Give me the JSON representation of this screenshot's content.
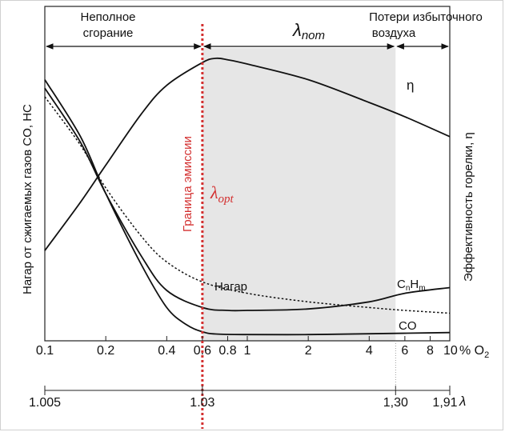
{
  "chart_data": {
    "type": "line",
    "title": "",
    "zone_labels": {
      "incomplete_line1": "Неполное",
      "incomplete_line2": "сгорание",
      "lambda_sym": "λ",
      "lambda_nom_sub": "nom",
      "excess_line1": "Потери избыточного",
      "excess_line2": "воздуха"
    },
    "emission_label": "Граница эмиссии",
    "lambda_opt_sym": "λ",
    "lambda_opt_sub": "opt",
    "ylabel_left": "Нагар от сжигаемых газов CO, HC",
    "ylabel_right": "Эффективность горелки, η",
    "eta_label": "η",
    "x_o2": {
      "unit": "% O",
      "unit_sub": "2",
      "ticks": [
        {
          "value": 0.1,
          "label": "0.1"
        },
        {
          "value": 0.2,
          "label": "0.2"
        },
        {
          "value": 0.4,
          "label": "0.4"
        },
        {
          "value": 0.6,
          "label": "0.6"
        },
        {
          "value": 0.8,
          "label": "0.8"
        },
        {
          "value": 1,
          "label": "1"
        },
        {
          "value": 2,
          "label": "2"
        },
        {
          "value": 4,
          "label": "4"
        },
        {
          "value": 6,
          "label": "6"
        },
        {
          "value": 8,
          "label": "8"
        },
        {
          "value": 10,
          "label": "10"
        }
      ],
      "xlim": [
        0.1,
        10
      ],
      "scale": "log"
    },
    "x_lambda": {
      "unit": "λ",
      "ticks": [
        {
          "o2": 0.1,
          "label": "1.005"
        },
        {
          "o2": 0.6,
          "label": "1.03"
        },
        {
          "o2": 5.4,
          "label": "1,30"
        },
        {
          "o2": 10,
          "label": "1,91"
        }
      ]
    },
    "lambda_opt_o2": 0.6,
    "nominal_range_o2": [
      0.6,
      5.4
    ],
    "series": [
      {
        "name": "Нагар",
        "style": "dotted",
        "x": [
          0.1,
          0.15,
          0.2,
          0.3,
          0.4,
          0.6,
          1,
          2,
          4,
          6,
          10
        ],
        "y": [
          0.84,
          0.67,
          0.52,
          0.35,
          0.26,
          0.19,
          0.15,
          0.12,
          0.1,
          0.09,
          0.08
        ]
      },
      {
        "name": "C_nH_m",
        "style": "solid",
        "x": [
          0.1,
          0.15,
          0.2,
          0.3,
          0.4,
          0.6,
          0.8,
          1,
          2,
          4,
          6,
          10
        ],
        "y": [
          0.87,
          0.68,
          0.5,
          0.28,
          0.16,
          0.1,
          0.09,
          0.09,
          0.095,
          0.12,
          0.15,
          0.17
        ]
      },
      {
        "name": "CO",
        "style": "solid",
        "x": [
          0.1,
          0.15,
          0.2,
          0.3,
          0.4,
          0.5,
          0.6,
          0.7,
          1,
          2,
          4,
          10
        ],
        "y": [
          0.9,
          0.7,
          0.5,
          0.25,
          0.1,
          0.04,
          0.015,
          0.007,
          0.005,
          0.005,
          0.008,
          0.012
        ]
      },
      {
        "name": "η",
        "style": "solid",
        "x": [
          0.1,
          0.15,
          0.2,
          0.3,
          0.4,
          0.6,
          0.7,
          0.8,
          1,
          2,
          4,
          6,
          10
        ],
        "y": [
          0.3,
          0.47,
          0.6,
          0.78,
          0.88,
          0.96,
          0.975,
          0.97,
          0.955,
          0.9,
          0.82,
          0.77,
          0.7
        ]
      }
    ],
    "series_labels": {
      "nagar": "Нагар",
      "cnhm_c": "C",
      "cnhm_n": "n",
      "cnhm_h": "H",
      "cnhm_m": "m",
      "co": "CO"
    },
    "colors": {
      "emission_line": "#d32f2f",
      "nominal_fill": "#e6e6e6",
      "curve": "#111111"
    }
  }
}
